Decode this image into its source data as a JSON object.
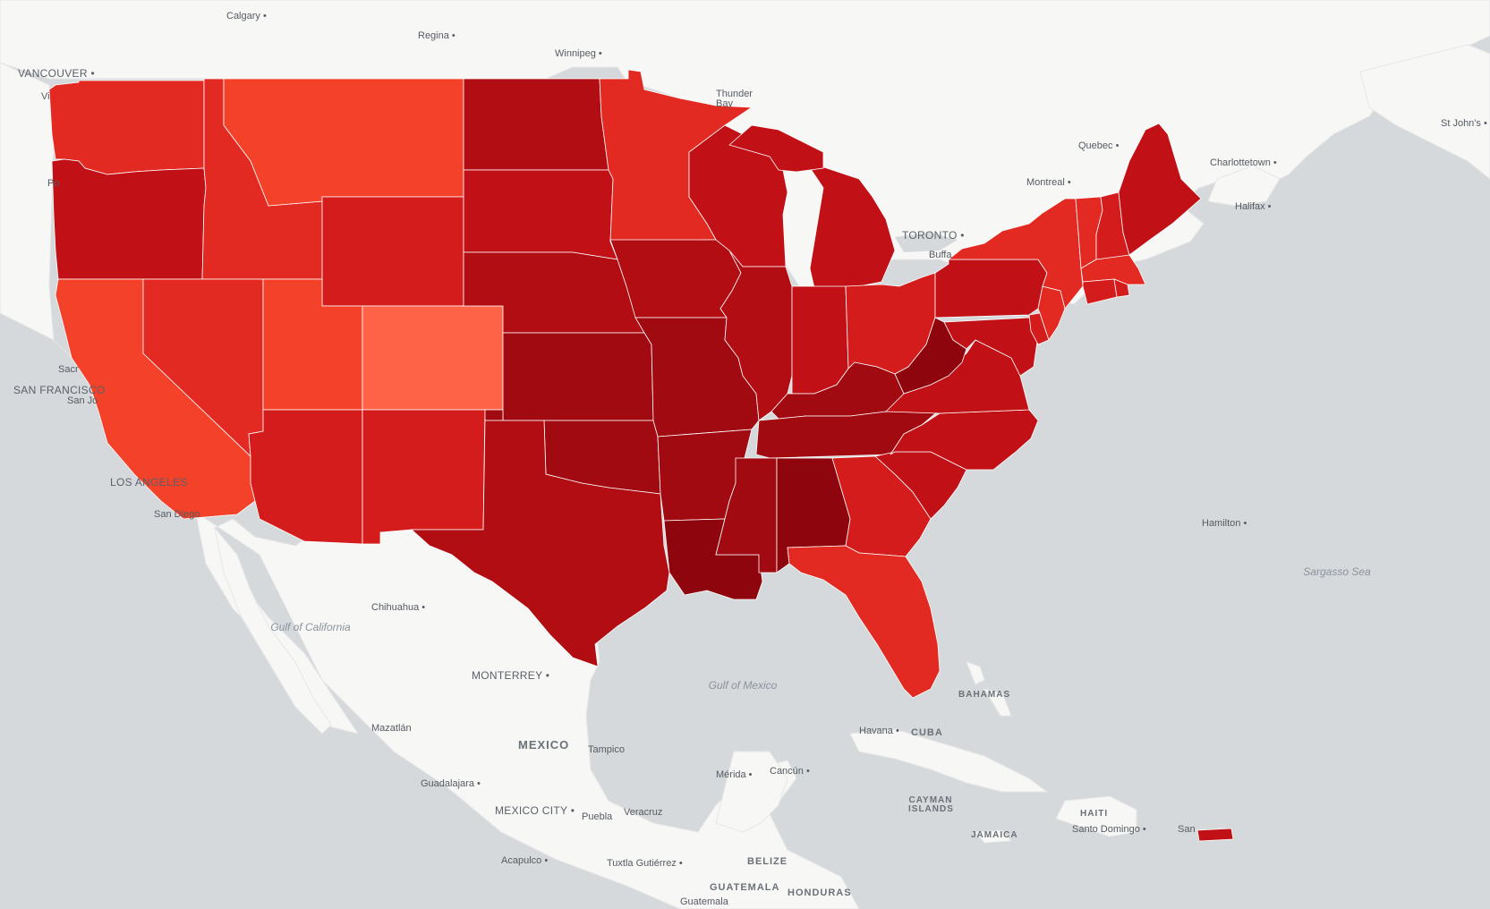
{
  "map": {
    "palette": [
      "#ff6347",
      "#f4422a",
      "#e32a22",
      "#d31c1b",
      "#c21116",
      "#b10d13",
      "#a10a10",
      "#8f050d"
    ],
    "land_color": "#f7f7f6",
    "water_color": "#d5d9dc",
    "labels": {
      "calgary": "Calgary",
      "regina": "Regina",
      "winnipeg": "Winnipeg",
      "vancouver": "VANCOUVER",
      "thunder_bay": "Thunder Bay",
      "quebec": "Quebec",
      "montreal": "Montreal",
      "toronto": "TORONTO",
      "buffalo": "Buffa",
      "charlottetown": "Charlottetown",
      "halifax": "Halifax",
      "st_johns": "St John's",
      "san_francisco": "SAN FRANCISCO",
      "san_jose": "San Jo",
      "sacramento": "Sacr",
      "los_angeles": "LOS ANGELES",
      "san_diego": "San Diego",
      "portland": "Po",
      "victoria": "Vi",
      "chihuahua": "Chihuahua",
      "monterrey": "MONTERREY",
      "mazatlan": "Mazatlán",
      "mexico": "MEXICO",
      "tampico": "Tampico",
      "guadalajara": "Guadalajara",
      "mexico_city": "MEXICO CITY",
      "puebla": "Puebla",
      "veracruz": "Veracruz",
      "merida": "Mérida",
      "cancun": "Cancún",
      "acapulco": "Acapulco",
      "tuxtla": "Tuxtla Gutiérrez",
      "belize": "BELIZE",
      "guatemala": "GUATEMALA",
      "guatemala_city": "Guatemala",
      "honduras": "HONDURAS",
      "havana": "Havana",
      "cuba": "CUBA",
      "bahamas": "BAHAMAS",
      "cayman": "CAYMAN ISLANDS",
      "jamaica": "JAMAICA",
      "haiti": "HAITI",
      "santo_domingo": "Santo Domingo",
      "san_juan": "San",
      "hamilton": "Hamilton",
      "gulf_california": "Gulf of California",
      "gulf_mexico": "Gulf of Mexico",
      "sargasso": "Sargasso Sea"
    },
    "states": [
      {
        "id": "WA",
        "level": 2
      },
      {
        "id": "OR",
        "level": 4
      },
      {
        "id": "CA",
        "level": 1
      },
      {
        "id": "ID",
        "level": 2
      },
      {
        "id": "NV",
        "level": 2
      },
      {
        "id": "MT",
        "level": 1
      },
      {
        "id": "WY",
        "level": 3
      },
      {
        "id": "UT",
        "level": 1
      },
      {
        "id": "AZ",
        "level": 3
      },
      {
        "id": "CO",
        "level": 0
      },
      {
        "id": "NM",
        "level": 3
      },
      {
        "id": "ND",
        "level": 5
      },
      {
        "id": "SD",
        "level": 4
      },
      {
        "id": "NE",
        "level": 5
      },
      {
        "id": "KS",
        "level": 6
      },
      {
        "id": "OK",
        "level": 6
      },
      {
        "id": "TX",
        "level": 5
      },
      {
        "id": "MN",
        "level": 2
      },
      {
        "id": "IA",
        "level": 5
      },
      {
        "id": "MO",
        "level": 6
      },
      {
        "id": "AR",
        "level": 6
      },
      {
        "id": "LA",
        "level": 7
      },
      {
        "id": "WI",
        "level": 4
      },
      {
        "id": "IL",
        "level": 5
      },
      {
        "id": "MI",
        "level": 4
      },
      {
        "id": "IN",
        "level": 4
      },
      {
        "id": "OH",
        "level": 3
      },
      {
        "id": "KY",
        "level": 6
      },
      {
        "id": "TN",
        "level": 6
      },
      {
        "id": "MS",
        "level": 6
      },
      {
        "id": "AL",
        "level": 7
      },
      {
        "id": "GA",
        "level": 3
      },
      {
        "id": "FL",
        "level": 2
      },
      {
        "id": "SC",
        "level": 4
      },
      {
        "id": "NC",
        "level": 4
      },
      {
        "id": "VA",
        "level": 4
      },
      {
        "id": "WV",
        "level": 7
      },
      {
        "id": "PA",
        "level": 4
      },
      {
        "id": "NY",
        "level": 2
      },
      {
        "id": "VT",
        "level": 2
      },
      {
        "id": "NH",
        "level": 3
      },
      {
        "id": "ME",
        "level": 4
      },
      {
        "id": "MA",
        "level": 2
      },
      {
        "id": "CT",
        "level": 3
      },
      {
        "id": "RI",
        "level": 3
      },
      {
        "id": "NJ",
        "level": 2
      },
      {
        "id": "DE",
        "level": 3
      },
      {
        "id": "MD",
        "level": 4
      },
      {
        "id": "PR",
        "level": 4
      }
    ]
  }
}
